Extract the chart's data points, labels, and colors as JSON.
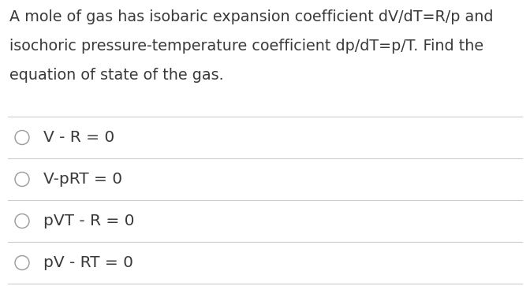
{
  "background_color": "#ffffff",
  "question_text_lines": [
    "A mole of gas has isobaric expansion coefficient dV/dT=R/p and",
    "isochoric pressure-temperature coefficient dp/dT=p/T. Find the",
    "equation of state of the gas."
  ],
  "options": [
    "V - R = 0",
    "V-pRT = 0",
    "pVT - R = 0",
    "pV - RT = 0"
  ],
  "text_color": "#3a3a3a",
  "line_color": "#cccccc",
  "circle_color": "#999999",
  "question_fontsize": 13.8,
  "option_fontsize": 14.5,
  "fig_width": 6.72,
  "fig_height": 3.63,
  "dpi": 100
}
